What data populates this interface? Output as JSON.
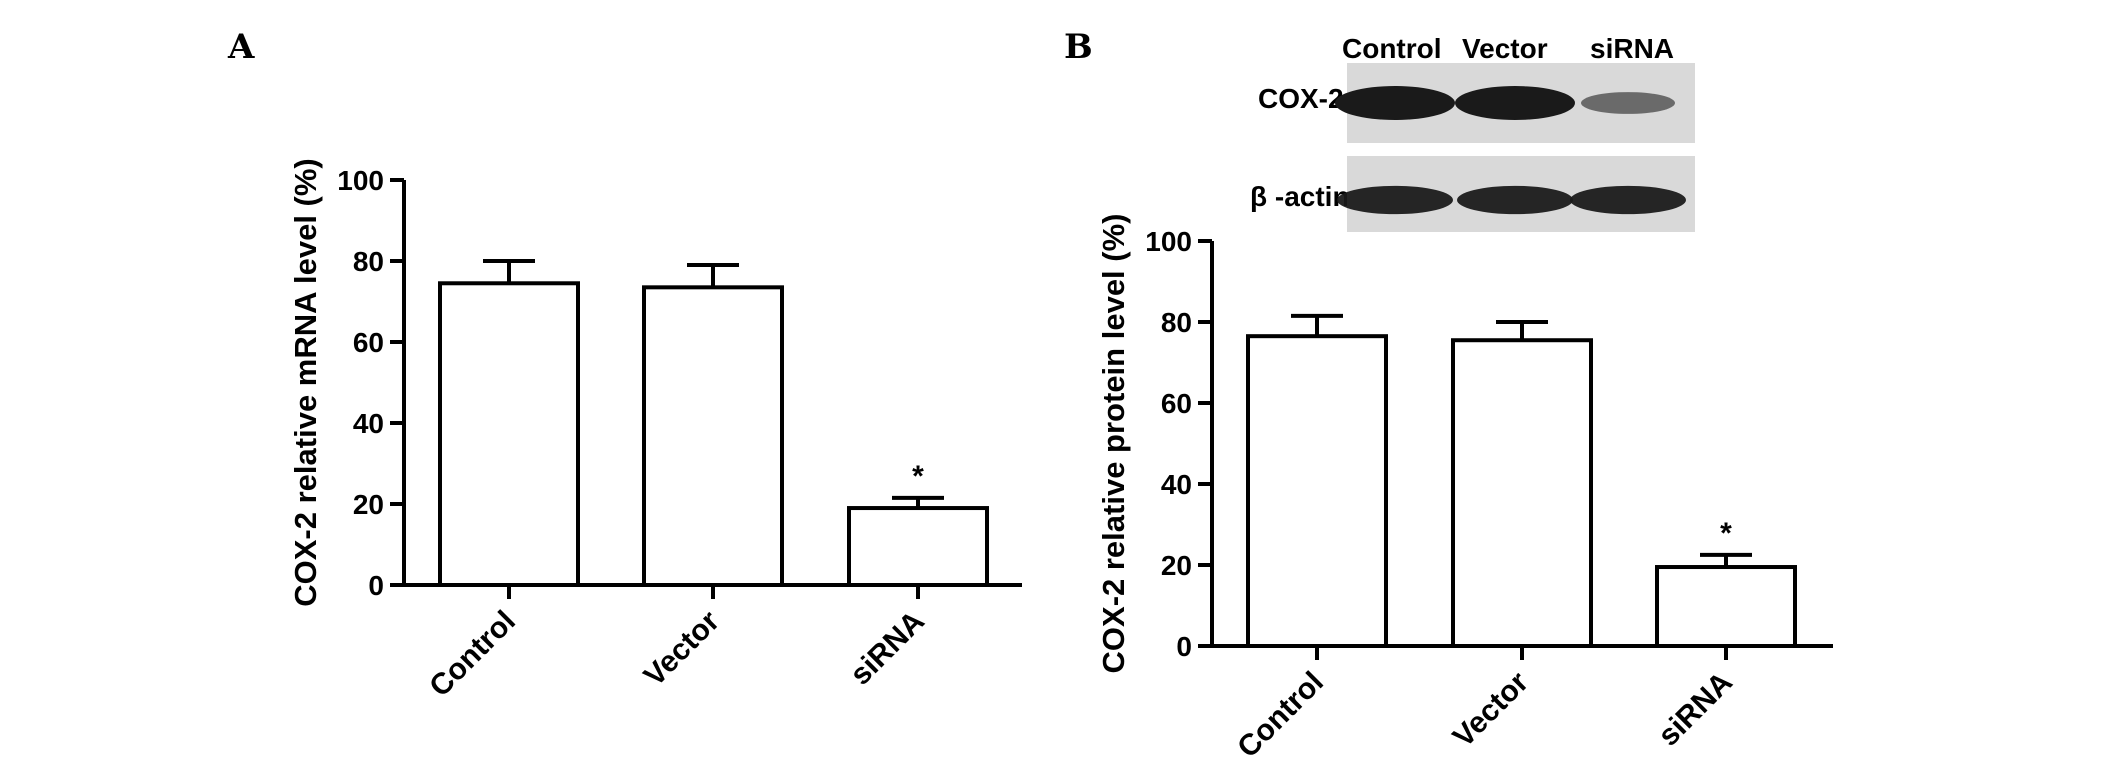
{
  "panels": {
    "a_label": "A",
    "b_label": "B"
  },
  "colors": {
    "bar_fill": "#ffffff",
    "stroke": "#000000",
    "blot_bg": "#d9d9d9",
    "blot_band": "#1a1a1a"
  },
  "blot": {
    "lane_labels": [
      "Control",
      "Vector",
      "siRNA"
    ],
    "row_labels": [
      "COX-2",
      "β -actin"
    ],
    "cox2_intensity": [
      1.0,
      1.0,
      0.35
    ],
    "actin_intensity": [
      0.9,
      0.9,
      0.9
    ]
  },
  "chart_data": [
    {
      "type": "bar",
      "panel": "A",
      "categories": [
        "Control",
        "Vector",
        "siRNA"
      ],
      "values": [
        74.5,
        73.5,
        19
      ],
      "errors": [
        5.5,
        5.5,
        2.5
      ],
      "significance": [
        "",
        "",
        "*"
      ],
      "ylabel": "COX-2 relative mRNA level (%)",
      "xlabel": "",
      "ylim": [
        0,
        100
      ],
      "yticks": [
        "0",
        "20",
        "40",
        "60",
        "80",
        "100"
      ],
      "grid": false
    },
    {
      "type": "bar",
      "panel": "B",
      "categories": [
        "Control",
        "Vector",
        "siRNA"
      ],
      "values": [
        76.5,
        75.5,
        19.5
      ],
      "errors": [
        5,
        4.5,
        3
      ],
      "significance": [
        "",
        "",
        "*"
      ],
      "ylabel": "COX-2 relative protein level (%)",
      "xlabel": "",
      "ylim": [
        0,
        100
      ],
      "yticks": [
        "0",
        "20",
        "40",
        "60",
        "80",
        "100"
      ],
      "grid": false
    }
  ]
}
